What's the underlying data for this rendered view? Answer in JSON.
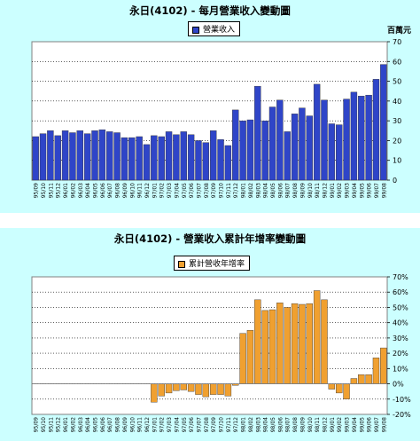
{
  "chart_data": [
    {
      "type": "bar",
      "title": "永日(4102) - 每月營業收入變動圖",
      "legend": "營業收入",
      "unit": "百萬元",
      "legend_position": "top-center",
      "y_axis_side": "right",
      "grid": true,
      "color": "#2f45c8",
      "ylim": [
        0,
        70
      ],
      "yticks": [
        "0",
        "10",
        "20",
        "30",
        "40",
        "50",
        "60",
        "70"
      ],
      "categories": [
        "95/09",
        "95/10",
        "95/11",
        "95/12",
        "96/01",
        "96/02",
        "96/03",
        "96/04",
        "96/05",
        "96/06",
        "96/07",
        "96/08",
        "96/09",
        "96/10",
        "96/11",
        "96/12",
        "97/01",
        "97/02",
        "97/03",
        "97/04",
        "97/05",
        "97/06",
        "97/07",
        "97/08",
        "97/09",
        "97/10",
        "97/11",
        "97/12",
        "98/01",
        "98/02",
        "98/03",
        "98/04",
        "98/05",
        "98/06",
        "98/07",
        "98/08",
        "98/09",
        "98/10",
        "98/11",
        "98/12",
        "99/01",
        "99/02",
        "99/03",
        "99/04",
        "99/05",
        "99/06",
        "99/07",
        "99/08"
      ],
      "values": [
        22,
        23.5,
        25,
        22.5,
        25,
        24,
        25,
        23.5,
        25,
        25.5,
        24.5,
        24,
        21.5,
        21.5,
        22,
        18,
        22.5,
        22,
        24.5,
        23,
        24.5,
        23,
        20,
        19,
        25,
        20.5,
        17.5,
        35.5,
        30,
        30.5,
        47.5,
        30,
        37,
        40.5,
        24.5,
        33.5,
        36.5,
        32.5,
        48.5,
        40.5,
        28.5,
        28,
        41,
        44.5,
        42.5,
        43,
        51,
        58.5
      ]
    },
    {
      "type": "bar",
      "title": "永日(4102) - 營業收入累計年增率變動圖",
      "legend": "累計營收年增率",
      "legend_position": "top-center",
      "y_axis_side": "right",
      "grid": true,
      "color": "#f0a030",
      "ylim": [
        -20,
        70
      ],
      "yticks": [
        "-20%",
        "-10%",
        "0%",
        "10%",
        "20%",
        "30%",
        "40%",
        "50%",
        "60%",
        "70%"
      ],
      "categories": [
        "95/09",
        "95/10",
        "95/11",
        "95/12",
        "96/01",
        "96/02",
        "96/03",
        "96/04",
        "96/05",
        "96/06",
        "96/07",
        "96/08",
        "96/09",
        "96/10",
        "96/11",
        "96/12",
        "97/01",
        "97/02",
        "97/03",
        "97/04",
        "97/05",
        "97/06",
        "97/07",
        "97/08",
        "97/09",
        "97/10",
        "97/11",
        "97/12",
        "98/01",
        "98/02",
        "98/03",
        "98/04",
        "98/05",
        "98/06",
        "98/07",
        "98/08",
        "98/09",
        "98/10",
        "98/11",
        "98/12",
        "99/01",
        "99/02",
        "99/03",
        "99/04",
        "99/05",
        "99/06",
        "99/07",
        "99/08"
      ],
      "values": [
        0,
        0,
        0,
        0,
        0,
        0,
        0,
        0,
        0,
        0,
        0,
        0,
        0,
        0,
        0,
        0,
        -12,
        -8,
        -6,
        -4.5,
        -4,
        -5,
        -7,
        -8.5,
        -7,
        -7,
        -8,
        -1,
        33,
        35,
        55,
        48,
        48.5,
        53,
        50,
        52.5,
        52,
        52.5,
        61,
        55,
        -3.5,
        -6,
        -10,
        3.5,
        6,
        6,
        17,
        23.5
      ]
    }
  ]
}
